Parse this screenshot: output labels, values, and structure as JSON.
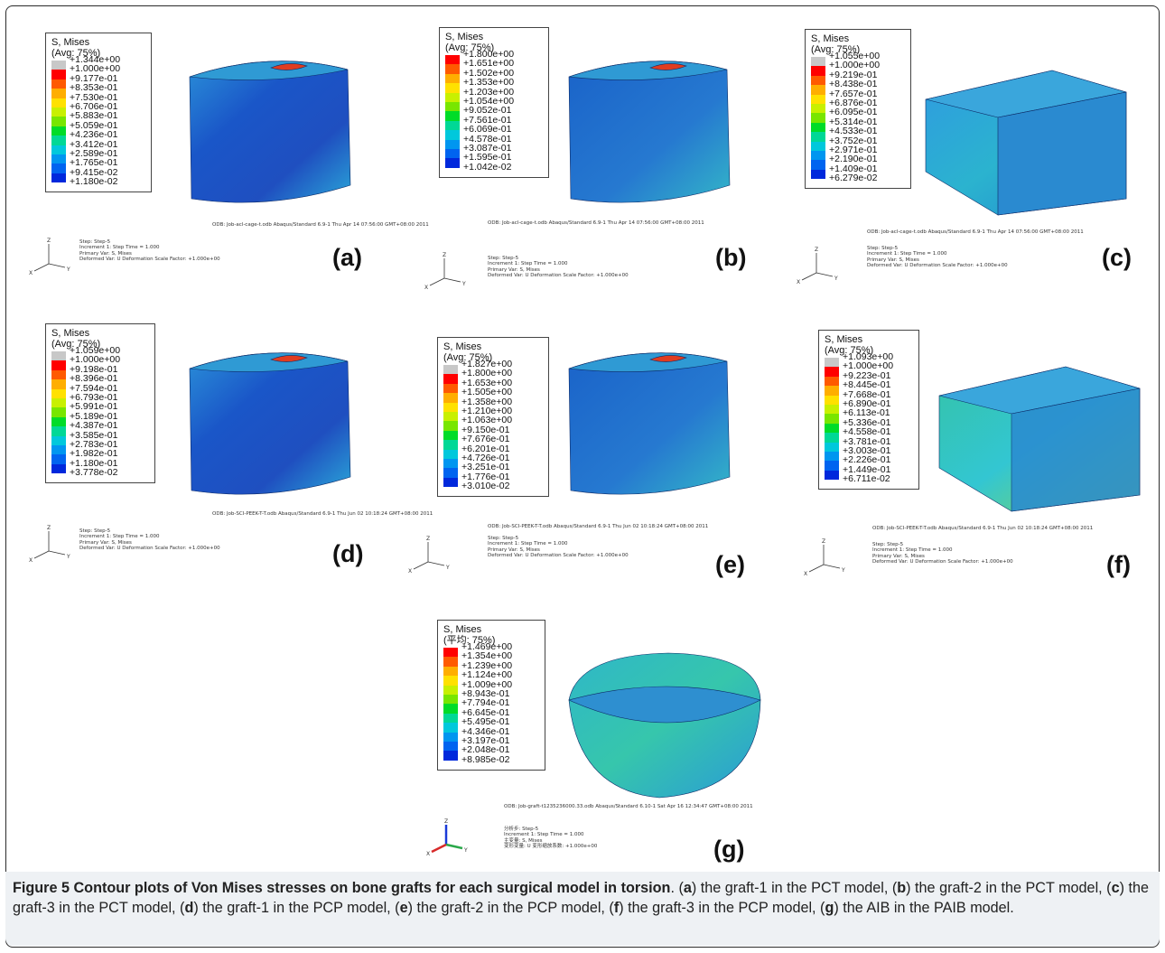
{
  "figure": {
    "caption_title": "Figure 5 Contour plots of Von Mises stresses on bone grafts for each surgical model in torsion",
    "caption_parts": [
      {
        "t": ". (",
        "b": false
      },
      {
        "t": "a",
        "b": true
      },
      {
        "t": ") the graft-1 in the PCT model, (",
        "b": false
      },
      {
        "t": "b",
        "b": true
      },
      {
        "t": ") the graft-2 in the PCT model, (",
        "b": false
      },
      {
        "t": "c",
        "b": true
      },
      {
        "t": ") the graft-3 in the PCT model, (",
        "b": false
      },
      {
        "t": "d",
        "b": true
      },
      {
        "t": ") the graft-1 in the PCP model, (",
        "b": false
      },
      {
        "t": "e",
        "b": true
      },
      {
        "t": ") the graft-2 in the PCP model, (",
        "b": false
      },
      {
        "t": "f",
        "b": true
      },
      {
        "t": ") the graft-3 in the PCP model, (",
        "b": false
      },
      {
        "t": "g",
        "b": true
      },
      {
        "t": ") the AIB in the PAIB model.",
        "b": false
      }
    ]
  },
  "panels": [
    {
      "label": "(a)",
      "legend_title": "S, Mises",
      "legend_avg": "(Avg: 75%)",
      "levels": [
        "+1.344e+00",
        "+1.000e+00",
        "+9.177e-01",
        "+8.353e-01",
        "+7.530e-01",
        "+6.706e-01",
        "+5.883e-01",
        "+5.059e-01",
        "+4.236e-01",
        "+3.412e-01",
        "+2.589e-01",
        "+1.765e-01",
        "+9.415e-02",
        "+1.180e-02"
      ],
      "odb": "ODB: Job-acl-cage-t.odb    Abaqus/Standard 6.9-1    Thu Apr 14 07:56:00 GMT+08:00 2011",
      "step_lines": [
        "Step: Step-5",
        "Increment     1: Step Time =    1.000",
        "Primary Var: S, Mises",
        "Deformed Var: U   Deformation Scale Factor: +1.000e+00"
      ],
      "axes": [
        "Z",
        "Y",
        "X"
      ]
    },
    {
      "label": "(b)",
      "legend_title": "S, Mises",
      "legend_avg": "(Avg: 75%)",
      "levels": [
        "+1.800e+00",
        "+1.651e+00",
        "+1.502e+00",
        "+1.353e+00",
        "+1.203e+00",
        "+1.054e+00",
        "+9.052e-01",
        "+7.561e-01",
        "+6.069e-01",
        "+4.578e-01",
        "+3.087e-01",
        "+1.595e-01",
        "+1.042e-02"
      ],
      "odb": "ODB: Job-acl-cage-t.odb    Abaqus/Standard 6.9-1    Thu Apr 14 07:56:00 GMT+08:00 2011",
      "step_lines": [
        "Step: Step-5",
        "Increment     1: Step Time =    1.000",
        "Primary Var: S, Mises",
        "Deformed Var: U   Deformation Scale Factor: +1.000e+00"
      ],
      "axes": [
        "Z",
        "Y",
        "X"
      ]
    },
    {
      "label": "(c)",
      "legend_title": "S, Mises",
      "legend_avg": "(Avg: 75%)",
      "levels": [
        "+1.055e+00",
        "+1.000e+00",
        "+9.219e-01",
        "+8.438e-01",
        "+7.657e-01",
        "+6.876e-01",
        "+6.095e-01",
        "+5.314e-01",
        "+4.533e-01",
        "+3.752e-01",
        "+2.971e-01",
        "+2.190e-01",
        "+1.409e-01",
        "+6.279e-02"
      ],
      "odb": "ODB: Job-acl-cage-t.odb    Abaqus/Standard 6.9-1    Thu Apr 14 07:56:00 GMT+08:00 2011",
      "step_lines": [
        "Step: Step-5",
        "Increment     1: Step Time =    1.000",
        "Primary Var: S, Mises",
        "Deformed Var: U   Deformation Scale Factor: +1.000e+00"
      ],
      "axes": [
        "Z",
        "Y",
        "X"
      ]
    },
    {
      "label": "(d)",
      "legend_title": "S, Mises",
      "legend_avg": "(Avg: 75%)",
      "levels": [
        "+1.059e+00",
        "+1.000e+00",
        "+9.198e-01",
        "+8.396e-01",
        "+7.594e-01",
        "+6.793e-01",
        "+5.991e-01",
        "+5.189e-01",
        "+4.387e-01",
        "+3.585e-01",
        "+2.783e-01",
        "+1.982e-01",
        "+1.180e-01",
        "+3.778e-02"
      ],
      "odb": "ODB: Job-SCI-PEEK-T-T.odb    Abaqus/Standard 6.9-1    Thu Jun 02 10:18:24 GMT+08:00 2011",
      "step_lines": [
        "Step: Step-5",
        "Increment     1: Step Time =    1.000",
        "Primary Var: S, Mises",
        "Deformed Var: U   Deformation Scale Factor: +1.000e+00"
      ],
      "axes": [
        "Z",
        "Y",
        "X"
      ]
    },
    {
      "label": "(e)",
      "legend_title": "S, Mises",
      "legend_avg": "(Avg: 75%)",
      "levels": [
        "+1.827e+00",
        "+1.800e+00",
        "+1.653e+00",
        "+1.505e+00",
        "+1.358e+00",
        "+1.210e+00",
        "+1.063e+00",
        "+9.150e-01",
        "+7.676e-01",
        "+6.201e-01",
        "+4.726e-01",
        "+3.251e-01",
        "+1.776e-01",
        "+3.010e-02"
      ],
      "odb": "ODB: Job-SCI-PEEK-T-T.odb    Abaqus/Standard 6.9-1    Thu Jun 02 10:18:24 GMT+08:00 2011",
      "step_lines": [
        "Step: Step-5",
        "Increment     1: Step Time =    1.000",
        "Primary Var: S, Mises",
        "Deformed Var: U   Deformation Scale Factor: +1.000e+00"
      ],
      "axes": [
        "Z",
        "Y",
        "X"
      ]
    },
    {
      "label": "(f)",
      "legend_title": "S, Mises",
      "legend_avg": "(Avg: 75%)",
      "levels": [
        "+1.093e+00",
        "+1.000e+00",
        "+9.223e-01",
        "+8.445e-01",
        "+7.668e-01",
        "+6.890e-01",
        "+6.113e-01",
        "+5.336e-01",
        "+4.558e-01",
        "+3.781e-01",
        "+3.003e-01",
        "+2.226e-01",
        "+1.449e-01",
        "+6.711e-02"
      ],
      "odb": "ODB: Job-SCI-PEEK-T-T.odb    Abaqus/Standard 6.9-1    Thu Jun 02 10:18:24 GMT+08:00 2011",
      "step_lines": [
        "Step: Step-5",
        "Increment     1: Step Time =    1.000",
        "Primary Var: S, Mises",
        "Deformed Var: U   Deformation Scale Factor: +1.000e+00"
      ],
      "axes": [
        "Z",
        "Y",
        "X"
      ]
    },
    {
      "label": "(g)",
      "legend_title": "S, Mises",
      "legend_avg": "(平均: 75%)",
      "levels": [
        "+1.469e+00",
        "+1.354e+00",
        "+1.239e+00",
        "+1.124e+00",
        "+1.009e+00",
        "+8.943e-01",
        "+7.794e-01",
        "+6.645e-01",
        "+5.495e-01",
        "+4.346e-01",
        "+3.197e-01",
        "+2.048e-01",
        "+8.985e-02"
      ],
      "odb": "ODB: Job-graft-t1235236000.33.odb    Abaqus/Standard 6.10-1    Sat Apr 16 12:34:47 GMT+08:00 2011",
      "step_lines": [
        "分析步: Step-5",
        "Increment     1: Step Time =    1.000",
        "主变量: S, Mises",
        "变形变量: U   变形缩放系数: +1.000e+00"
      ],
      "axes": [
        "Z",
        "Y",
        "X"
      ]
    }
  ],
  "colors": {
    "scale14": [
      "#c8c8c8",
      "#ff0000",
      "#ff5a00",
      "#ffae00",
      "#ffe100",
      "#c8f000",
      "#78e600",
      "#00dc28",
      "#00d896",
      "#00c8dc",
      "#0096f0",
      "#0064f0",
      "#0028dc"
    ],
    "scale13": [
      "#ff0000",
      "#ff5a00",
      "#ffae00",
      "#ffe100",
      "#c8f000",
      "#78e600",
      "#00dc28",
      "#00d896",
      "#00c8dc",
      "#0096f0",
      "#0064f0",
      "#0028dc"
    ]
  }
}
